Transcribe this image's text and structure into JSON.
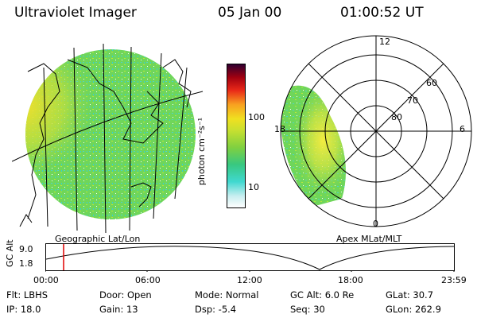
{
  "header": {
    "instrument": "Ultraviolet Imager",
    "date": "05 Jan 00",
    "time": "01:00:52 UT"
  },
  "left_panel": {
    "caption": "Geographic Lat/Lon"
  },
  "colorbar": {
    "unit_label": "photon cm⁻²s⁻¹",
    "ticks": [
      "100",
      "10"
    ],
    "gradient": [
      "#ffffff",
      "#c8eef0",
      "#40d8d0",
      "#38c880",
      "#80d040",
      "#c8e030",
      "#f0e020",
      "#f8a020",
      "#e82818",
      "#a00010",
      "#300030"
    ]
  },
  "right_panel": {
    "caption": "Apex MLat/MLT",
    "mlt_labels": [
      "12",
      "18",
      "6",
      "0"
    ],
    "lat_labels": [
      "60",
      "70",
      "80"
    ]
  },
  "timeline": {
    "axis_title": "GC Alt",
    "y_ticks": [
      "9.0",
      "1.8"
    ],
    "x_ticks": [
      "00:00",
      "06:00",
      "12:00",
      "18:00",
      "23:59"
    ],
    "marker_color": "#e00000"
  },
  "footer": {
    "flt": "Flt: LBHS",
    "ip": "IP: 18.0",
    "door": "Door: Open",
    "gain": "Gain: 13",
    "mode": "Mode: Normal",
    "dsp": "Dsp:    -5.4",
    "gc_alt": "GC Alt: 6.0 Re",
    "seq": "Seq: 30",
    "glat": "GLat:  30.7",
    "glon": "GLon: 262.9"
  }
}
